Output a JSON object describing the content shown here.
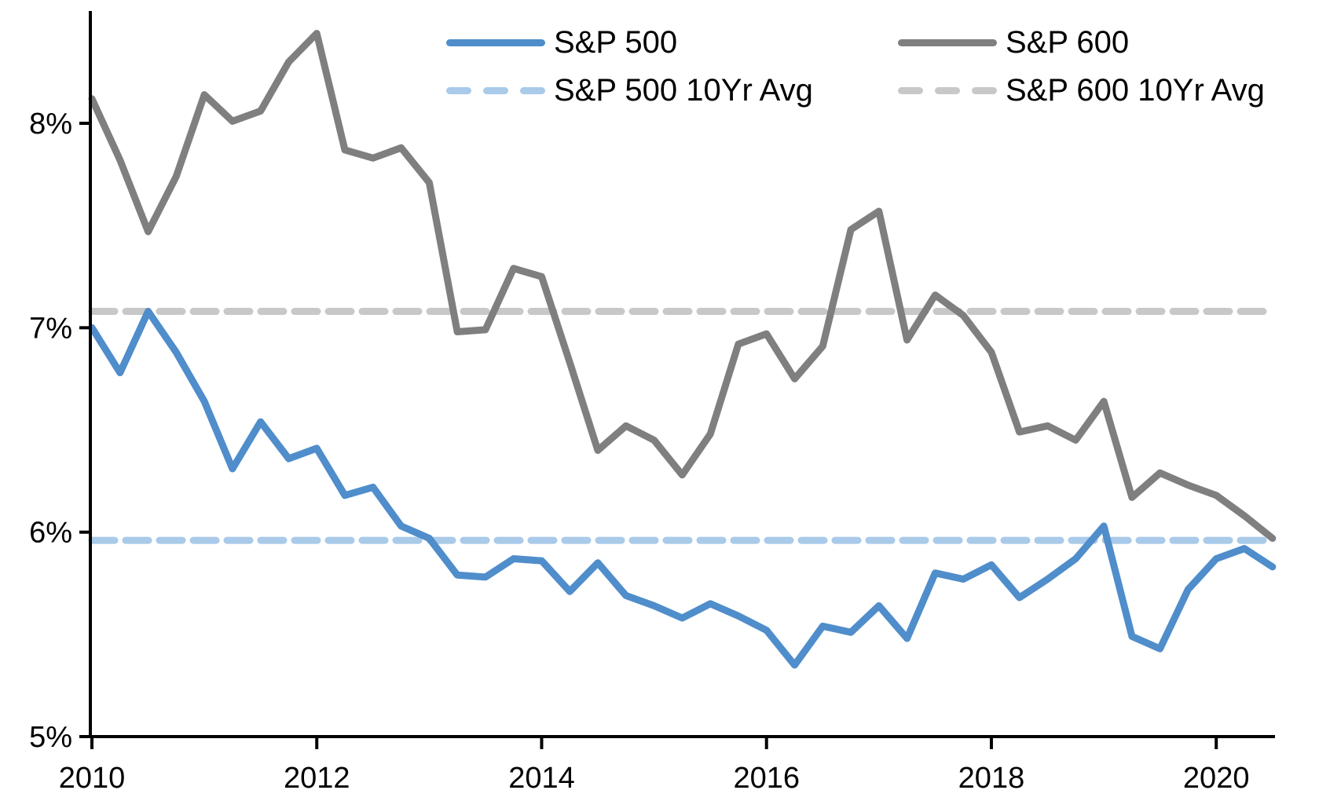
{
  "chart_data": {
    "type": "line",
    "title": "",
    "xlabel": "",
    "ylabel": "",
    "grid": false,
    "legend_position": "top",
    "xlim": [
      2010,
      2020.6
    ],
    "ylim": [
      5,
      8.55
    ],
    "x": [
      2010.0,
      2010.25,
      2010.5,
      2010.75,
      2011.0,
      2011.25,
      2011.5,
      2011.75,
      2012.0,
      2012.25,
      2012.5,
      2012.75,
      2013.0,
      2013.25,
      2013.5,
      2013.75,
      2014.0,
      2014.25,
      2014.5,
      2014.75,
      2015.0,
      2015.25,
      2015.5,
      2015.75,
      2016.0,
      2016.25,
      2016.5,
      2016.75,
      2017.0,
      2017.25,
      2017.5,
      2017.75,
      2018.0,
      2018.25,
      2018.5,
      2018.75,
      2019.0,
      2019.25,
      2019.5,
      2019.75,
      2020.0,
      2020.25,
      2020.5
    ],
    "series": [
      {
        "name": "S&P 500",
        "style": "solid",
        "color": "#4F8DCB",
        "values": [
          7.0,
          6.78,
          7.08,
          6.88,
          6.64,
          6.31,
          6.54,
          6.36,
          6.41,
          6.18,
          6.22,
          6.03,
          5.97,
          5.79,
          5.78,
          5.87,
          5.86,
          5.71,
          5.85,
          5.69,
          5.64,
          5.58,
          5.65,
          5.59,
          5.52,
          5.35,
          5.54,
          5.51,
          5.64,
          5.48,
          5.8,
          5.77,
          5.84,
          5.68,
          5.77,
          5.87,
          6.03,
          5.49,
          5.43,
          5.72,
          5.87,
          5.92,
          5.83
        ]
      },
      {
        "name": "S&P 600",
        "style": "solid",
        "color": "#7F7F7F",
        "values": [
          8.12,
          7.82,
          7.47,
          7.74,
          8.14,
          8.01,
          8.06,
          8.3,
          8.44,
          7.87,
          7.83,
          7.88,
          7.71,
          6.98,
          6.99,
          7.29,
          7.25,
          6.83,
          6.4,
          6.52,
          6.45,
          6.28,
          6.48,
          6.92,
          6.97,
          6.75,
          6.91,
          7.48,
          7.57,
          6.94,
          7.16,
          7.06,
          6.88,
          6.49,
          6.52,
          6.45,
          6.64,
          6.17,
          6.29,
          6.23,
          6.18,
          6.08,
          5.97
        ]
      },
      {
        "name": "S&P 500 10Yr Avg",
        "style": "dashed",
        "color": "#A9CAE9",
        "avg_value": 5.96
      },
      {
        "name": "S&P 600 10Yr Avg",
        "style": "dashed",
        "color": "#C8C8C8",
        "avg_value": 7.08
      }
    ],
    "x_ticks": [
      {
        "label": "2010",
        "x": 2010
      },
      {
        "label": "2012",
        "x": 2012
      },
      {
        "label": "2014",
        "x": 2014
      },
      {
        "label": "2016",
        "x": 2016
      },
      {
        "label": "2018",
        "x": 2018
      },
      {
        "label": "2020",
        "x": 2020
      }
    ],
    "y_ticks": [
      {
        "label": "5%",
        "value": 5
      },
      {
        "label": "6%",
        "value": 6
      },
      {
        "label": "7%",
        "value": 7
      },
      {
        "label": "8%",
        "value": 8
      }
    ],
    "axis_color": "#000000"
  }
}
